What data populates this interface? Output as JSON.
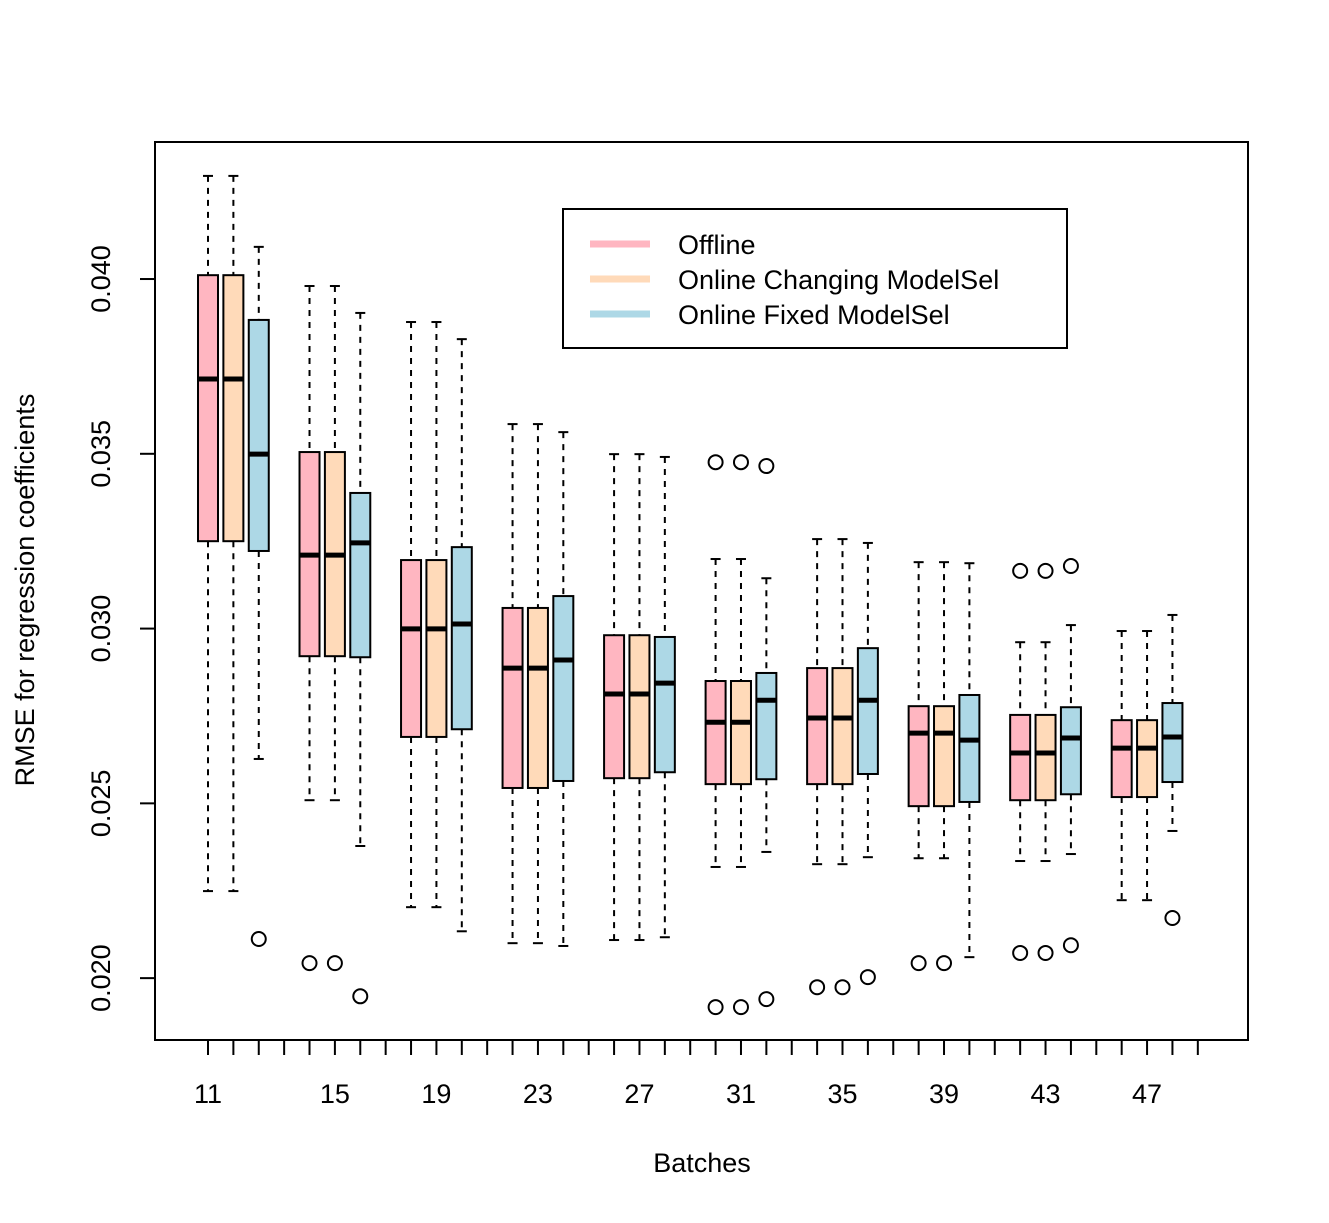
{
  "chart_data": {
    "type": "box",
    "x_label": "Batches",
    "y_label": "RMSE for regression coefficients",
    "categories": [
      "11",
      null,
      null,
      null,
      null,
      "15",
      null,
      null,
      null,
      "19",
      null,
      null,
      null,
      "23",
      null,
      null,
      null,
      "27",
      null,
      null,
      null,
      "31",
      null,
      null,
      null,
      "35",
      null,
      null,
      null,
      "39",
      null,
      null,
      null,
      "43",
      null,
      null,
      null,
      "47",
      null,
      null
    ],
    "ylim": [
      0.01823,
      0.04392
    ],
    "yticks": [
      {
        "value": 0.02,
        "label": "0.020"
      },
      {
        "value": 0.025,
        "label": "0.025"
      },
      {
        "value": 0.03,
        "label": "0.030"
      },
      {
        "value": 0.035,
        "label": "0.035"
      },
      {
        "value": 0.04,
        "label": "0.040"
      }
    ],
    "legend": "top-right",
    "series": [
      {
        "name": "Offline",
        "color": "#ffb6c1",
        "values": [
          {
            "whislo": 0.02249,
            "q1": 0.0325,
            "median": 0.03714,
            "q3": 0.04011,
            "whishi": 0.04295,
            "outliers": []
          },
          {
            "whislo": 0.02509,
            "q1": 0.02921,
            "median": 0.0321,
            "q3": 0.03505,
            "whishi": 0.0398,
            "outliers": [
              0.02043
            ]
          },
          {
            "whislo": 0.02203,
            "q1": 0.0269,
            "median": 0.02999,
            "q3": 0.03196,
            "whishi": 0.03877,
            "outliers": []
          },
          {
            "whislo": 0.021,
            "q1": 0.02544,
            "median": 0.02887,
            "q3": 0.03059,
            "whishi": 0.03585,
            "outliers": []
          },
          {
            "whislo": 0.02109,
            "q1": 0.02572,
            "median": 0.02813,
            "q3": 0.02981,
            "whishi": 0.03499,
            "outliers": []
          },
          {
            "whislo": 0.02318,
            "q1": 0.02555,
            "median": 0.02732,
            "q3": 0.0285,
            "whishi": 0.03199,
            "outliers": [
              0.03476,
              0.01917
            ]
          },
          {
            "whislo": 0.02326,
            "q1": 0.02555,
            "median": 0.02744,
            "q3": 0.02887,
            "whishi": 0.03256,
            "outliers": [
              0.01974
            ]
          },
          {
            "whislo": 0.02343,
            "q1": 0.02492,
            "median": 0.02701,
            "q3": 0.02778,
            "whishi": 0.0319,
            "outliers": [
              0.02043
            ]
          },
          {
            "whislo": 0.02335,
            "q1": 0.02509,
            "median": 0.02644,
            "q3": 0.02753,
            "whishi": 0.02961,
            "outliers": [
              0.03165,
              0.02072
            ]
          },
          {
            "whislo": 0.02223,
            "q1": 0.02518,
            "median": 0.02658,
            "q3": 0.02738,
            "whishi": 0.02993,
            "outliers": []
          }
        ]
      },
      {
        "name": "Online Changing ModelSel",
        "color": "#ffdab9",
        "values": [
          {
            "whislo": 0.02249,
            "q1": 0.0325,
            "median": 0.03714,
            "q3": 0.04011,
            "whishi": 0.04295,
            "outliers": []
          },
          {
            "whislo": 0.02509,
            "q1": 0.02921,
            "median": 0.0321,
            "q3": 0.03505,
            "whishi": 0.0398,
            "outliers": [
              0.02043
            ]
          },
          {
            "whislo": 0.02203,
            "q1": 0.0269,
            "median": 0.02999,
            "q3": 0.03196,
            "whishi": 0.03877,
            "outliers": []
          },
          {
            "whislo": 0.021,
            "q1": 0.02544,
            "median": 0.02887,
            "q3": 0.03059,
            "whishi": 0.03585,
            "outliers": []
          },
          {
            "whislo": 0.02109,
            "q1": 0.02572,
            "median": 0.02813,
            "q3": 0.02981,
            "whishi": 0.03499,
            "outliers": []
          },
          {
            "whislo": 0.02318,
            "q1": 0.02555,
            "median": 0.02732,
            "q3": 0.0285,
            "whishi": 0.03199,
            "outliers": [
              0.03476,
              0.01917
            ]
          },
          {
            "whislo": 0.02326,
            "q1": 0.02555,
            "median": 0.02744,
            "q3": 0.02887,
            "whishi": 0.03256,
            "outliers": [
              0.01974
            ]
          },
          {
            "whislo": 0.02343,
            "q1": 0.02492,
            "median": 0.02701,
            "q3": 0.02778,
            "whishi": 0.0319,
            "outliers": [
              0.02043
            ]
          },
          {
            "whislo": 0.02335,
            "q1": 0.02509,
            "median": 0.02644,
            "q3": 0.02753,
            "whishi": 0.02961,
            "outliers": [
              0.03165,
              0.02072
            ]
          },
          {
            "whislo": 0.02223,
            "q1": 0.02518,
            "median": 0.02658,
            "q3": 0.02738,
            "whishi": 0.02993,
            "outliers": []
          }
        ]
      },
      {
        "name": "Online Fixed ModelSel",
        "color": "#add8e6",
        "values": [
          {
            "whislo": 0.02627,
            "q1": 0.03222,
            "median": 0.03499,
            "q3": 0.03883,
            "whishi": 0.04092,
            "outliers": [
              0.02112
            ]
          },
          {
            "whislo": 0.02378,
            "q1": 0.02918,
            "median": 0.03245,
            "q3": 0.03388,
            "whishi": 0.03903,
            "outliers": [
              0.01948
            ]
          },
          {
            "whislo": 0.02134,
            "q1": 0.02712,
            "median": 0.03013,
            "q3": 0.03233,
            "whishi": 0.03828,
            "outliers": []
          },
          {
            "whislo": 0.02092,
            "q1": 0.02564,
            "median": 0.0291,
            "q3": 0.03093,
            "whishi": 0.03562,
            "outliers": []
          },
          {
            "whislo": 0.02117,
            "q1": 0.02589,
            "median": 0.02844,
            "q3": 0.02976,
            "whishi": 0.03491,
            "outliers": []
          },
          {
            "whislo": 0.02361,
            "q1": 0.02569,
            "median": 0.02795,
            "q3": 0.02873,
            "whishi": 0.03144,
            "outliers": [
              0.03465,
              0.0194
            ]
          },
          {
            "whislo": 0.02346,
            "q1": 0.02584,
            "median": 0.02795,
            "q3": 0.02944,
            "whishi": 0.03245,
            "outliers": [
              0.02003
            ]
          },
          {
            "whislo": 0.0206,
            "q1": 0.02504,
            "median": 0.02681,
            "q3": 0.0281,
            "whishi": 0.03187,
            "outliers": []
          },
          {
            "whislo": 0.02355,
            "q1": 0.02526,
            "median": 0.02687,
            "q3": 0.02775,
            "whishi": 0.0301,
            "outliers": [
              0.03179,
              0.02094
            ]
          },
          {
            "whislo": 0.02421,
            "q1": 0.02561,
            "median": 0.0269,
            "q3": 0.02787,
            "whishi": 0.03039,
            "outliers": [
              0.02172
            ]
          }
        ]
      }
    ]
  }
}
